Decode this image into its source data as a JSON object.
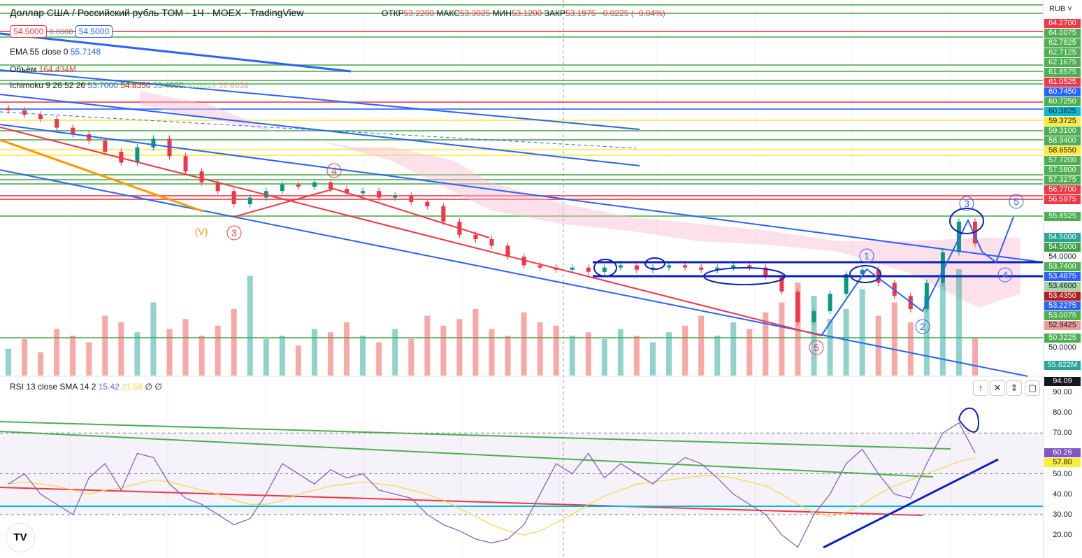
{
  "header": {
    "title": "Доллар США / Российский рубль TOM · 1Ч · MOEX · TradingView",
    "ohlc": {
      "open_label": "ОТКР",
      "open": "53.2200",
      "high_label": "МАКС",
      "high": "53.3025",
      "low_label": "МИН",
      "low": "53.1200",
      "close_label": "ЗАКР",
      "close": "53.1975",
      "change": "−0.0225 (−0.04%)"
    },
    "sell": "54.5000",
    "spread": "0.0000",
    "buy": "54.5000"
  },
  "indicators": {
    "ema": {
      "label": "EMA 55 close 0",
      "value": "55.7148"
    },
    "volume": {
      "label": "Объём",
      "value": "164.434M"
    },
    "ichimoku": {
      "label": "Ichimoku 9 26 52 26",
      "v1": "53.7000",
      "v2": "54.8350",
      "v3": "53.4000",
      "v4": "56.6619",
      "v5": "57.6638"
    },
    "rsi": {
      "label": "RSI 13 close SMA 14 2",
      "rsi": "15.42",
      "sma": "21.59",
      "v3": "∅",
      "v4": "∅"
    }
  },
  "axis": {
    "currency": "RUB",
    "price_labels": [
      {
        "t": "64.2700",
        "c": "#f23645"
      },
      {
        "t": "64.0075",
        "c": "#4caf50"
      },
      {
        "t": "62.7825",
        "c": "#4caf50"
      },
      {
        "t": "62.7125",
        "c": "#4caf50"
      },
      {
        "t": "62.1675",
        "c": "#4caf50"
      },
      {
        "t": "61.8575",
        "c": "#4caf50"
      },
      {
        "t": "61.0525",
        "c": "#f23645"
      },
      {
        "t": "60.7450",
        "c": "#2962ff"
      },
      {
        "t": "60.7250",
        "c": "#4caf50"
      },
      {
        "t": "60.3825",
        "c": "#00bcd4"
      },
      {
        "t": "59.3725",
        "c": "#ffeb3b"
      },
      {
        "t": "59.3100",
        "c": "#4caf50"
      },
      {
        "t": "58.9400",
        "c": "#4caf50"
      },
      {
        "t": "58.6550",
        "c": "#ffeb3b"
      },
      {
        "t": "57.7200",
        "c": "#4caf50"
      },
      {
        "t": "57.5800",
        "c": "#4caf50"
      },
      {
        "t": "57.3275",
        "c": "#4caf50"
      },
      {
        "t": "56.7700",
        "c": "#f23645"
      },
      {
        "t": "56.5975",
        "c": "#f23645"
      },
      {
        "t": "55.8525",
        "c": "#4caf50"
      },
      {
        "t": "54.5000",
        "c": "#26a69a"
      },
      {
        "t": "54.5000",
        "c": "#43a047"
      },
      {
        "t": "54.0000",
        "c": ""
      },
      {
        "t": "53.7400",
        "c": "#4caf50"
      },
      {
        "t": "53.4875",
        "c": "#2962ff"
      },
      {
        "t": "53.4600",
        "c": "#a5d6a7"
      },
      {
        "t": "53.4350",
        "c": "#b71c1c"
      },
      {
        "t": "53.2275",
        "c": "#2962ff"
      },
      {
        "t": "53.0075",
        "c": "#4caf50"
      },
      {
        "t": "52.9425",
        "c": "#ef9a9a"
      },
      {
        "t": "50.3225",
        "c": "#4caf50"
      },
      {
        "t": "50.0000",
        "c": ""
      },
      {
        "t": "55.622M",
        "c": "#26a69a"
      }
    ],
    "rsi_ticks": [
      "90.00",
      "80.00",
      "70.00",
      "50.00",
      "40.00",
      "30.00",
      "20.00"
    ],
    "rsi_labels": [
      {
        "t": "94.09",
        "c": "#131722"
      },
      {
        "t": "60.26",
        "c": "#7e57c2"
      },
      {
        "t": "57.80",
        "c": "#ffeb3b"
      }
    ]
  },
  "waves": {
    "v": "(V)",
    "r3": "3",
    "r4": "4",
    "r5": "5",
    "b1": "1",
    "b2": "2",
    "b3": "3",
    "b4": "4",
    "b5": "5"
  },
  "chart_data": {
    "type": "candlestick",
    "close": [
      60.7,
      60.5,
      60.3,
      59.9,
      59.6,
      59.3,
      58.8,
      58.3,
      59.0,
      59.4,
      58.6,
      57.9,
      57.4,
      57.0,
      56.4,
      56.7,
      57.0,
      57.3,
      57.2,
      57.4,
      57.1,
      56.9,
      57.0,
      56.7,
      56.8,
      56.5,
      56.3,
      55.6,
      55.0,
      54.8,
      54.5,
      54.0,
      53.6,
      53.5,
      53.4,
      53.5,
      53.3,
      53.5,
      53.6,
      53.4,
      53.5,
      53.6,
      53.5,
      53.4,
      53.5,
      53.6,
      53.5,
      53.1,
      52.4,
      51.0,
      51.5,
      52.3,
      53.2,
      53.4,
      52.8,
      52.2,
      51.6,
      52.8,
      54.2,
      55.6,
      54.6
    ],
    "volume_m": [
      40,
      55,
      35,
      70,
      60,
      50,
      90,
      80,
      65,
      110,
      70,
      85,
      60,
      75,
      100,
      150,
      55,
      60,
      45,
      70,
      65,
      80,
      60,
      50,
      70,
      55,
      90,
      75,
      85,
      100,
      70,
      60,
      95,
      80,
      75,
      60,
      65,
      55,
      70,
      60,
      50,
      65,
      75,
      90,
      60,
      80,
      70,
      95,
      110,
      140,
      120,
      85,
      100,
      130,
      90,
      110,
      80,
      120,
      140,
      160,
      55.622
    ],
    "rsi": [
      45,
      50,
      40,
      35,
      30,
      48,
      55,
      42,
      60,
      58,
      45,
      38,
      35,
      30,
      25,
      28,
      40,
      55,
      50,
      45,
      52,
      48,
      50,
      42,
      40,
      38,
      30,
      25,
      22,
      18,
      16,
      18,
      25,
      40,
      55,
      50,
      60,
      48,
      55,
      50,
      45,
      52,
      58,
      55,
      48,
      40,
      35,
      30,
      20,
      14,
      30,
      40,
      55,
      62,
      50,
      40,
      38,
      55,
      70,
      75,
      60.26
    ],
    "rsi_sma": [
      45,
      46,
      45,
      44,
      42,
      40,
      42,
      43,
      45,
      47,
      46,
      44,
      42,
      40,
      37,
      35,
      35,
      37,
      40,
      42,
      44,
      45,
      46,
      45,
      44,
      42,
      40,
      37,
      33,
      29,
      25,
      22,
      20,
      22,
      26,
      30,
      35,
      39,
      42,
      45,
      46,
      47,
      48,
      49,
      49,
      48,
      46,
      44,
      40,
      35,
      31,
      29,
      31,
      35,
      40,
      44,
      47,
      50,
      53,
      56,
      57.8
    ],
    "rsi_range": [
      10,
      95
    ]
  }
}
